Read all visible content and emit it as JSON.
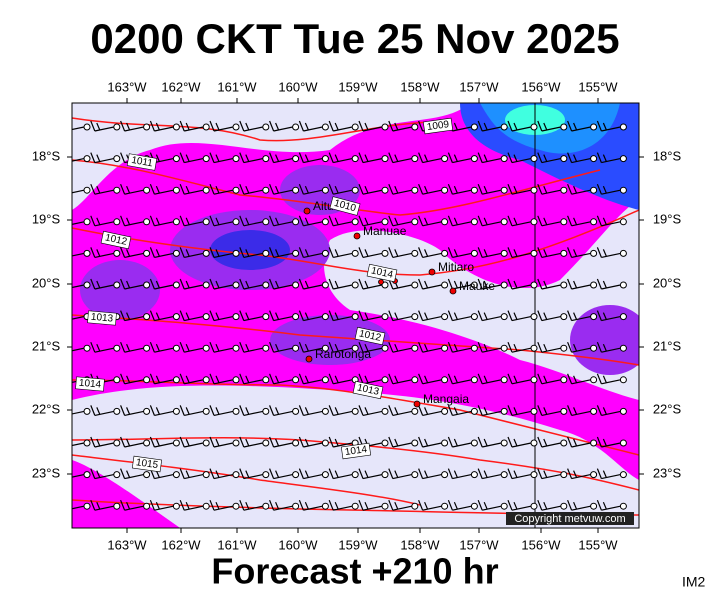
{
  "title": "0200 CKT Tue 25 Nov 2025",
  "footer": "Forecast +210 hr",
  "corner_label": "IM2",
  "copyright": "Copyright metvuw.com",
  "lon_labels": [
    "163°W",
    "162°W",
    "161°W",
    "160°W",
    "159°W",
    "158°W",
    "157°W",
    "156°W",
    "155°W"
  ],
  "lat_labels": [
    "18°S",
    "19°S",
    "20°S",
    "21°S",
    "22°S",
    "23°S"
  ],
  "places": [
    "Aitutaki",
    "Manuae",
    "Mitiaro",
    "Mauke",
    "Rarotonga",
    "Mangaia"
  ],
  "isobar_labels": [
    "1009",
    "1011",
    "1010",
    "1012",
    "1014",
    "1013",
    "1012",
    "1013",
    "1014",
    "1014",
    "1015"
  ]
}
